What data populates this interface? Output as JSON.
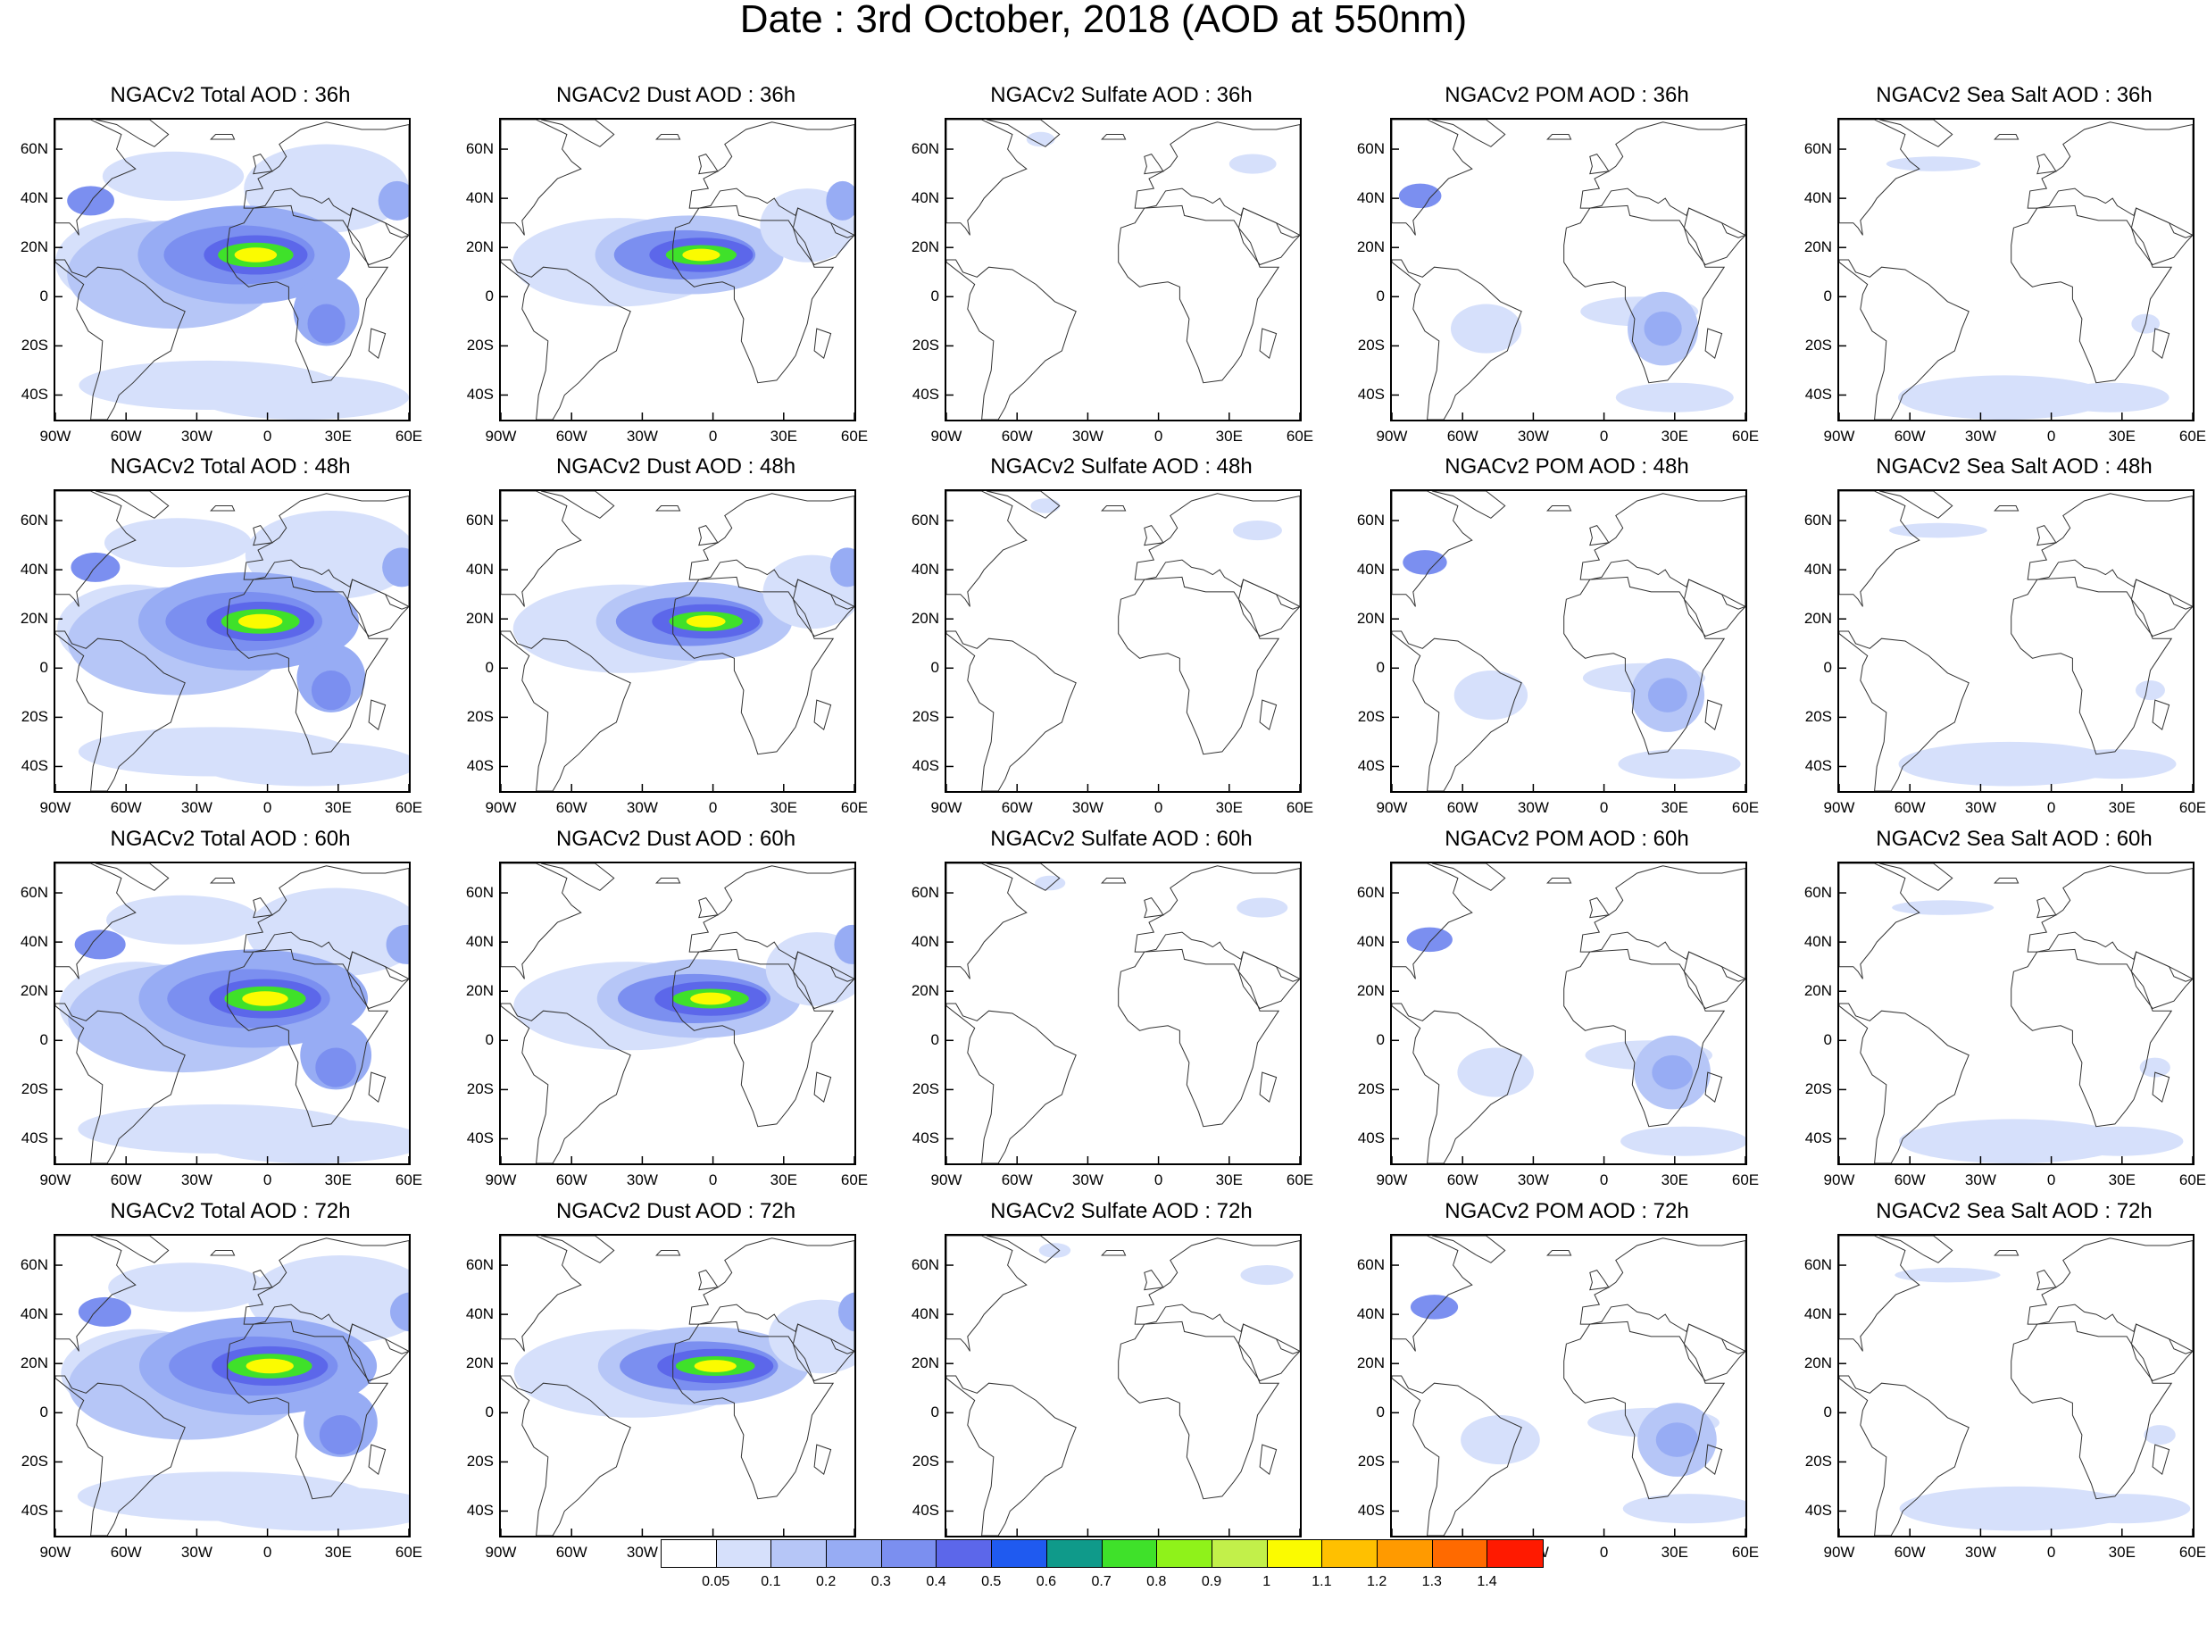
{
  "title": "Date : 3rd October, 2018 (AOD at 550nm)",
  "map_axes": {
    "lon_ticks": [
      "90W",
      "60W",
      "30W",
      "0",
      "30E",
      "60E"
    ],
    "lat_ticks": [
      "60N",
      "40N",
      "20N",
      "0",
      "20S",
      "40S"
    ],
    "lon_values": [
      -90,
      -60,
      -30,
      0,
      30,
      60
    ],
    "lat_values": [
      60,
      40,
      20,
      0,
      -20,
      -40
    ],
    "lon_range": [
      -90,
      60
    ],
    "lat_range": [
      -50,
      72
    ]
  },
  "rows": [
    "36h",
    "48h",
    "60h",
    "72h"
  ],
  "species": [
    "Total",
    "Dust",
    "Sulfate",
    "POM",
    "Sea Salt"
  ],
  "panel_titles": [
    [
      "NGACv2 Total AOD : 36h",
      "NGACv2 Dust AOD : 36h",
      "NGACv2 Sulfate AOD : 36h",
      "NGACv2 POM AOD : 36h",
      "NGACv2 Sea Salt AOD : 36h"
    ],
    [
      "NGACv2 Total AOD : 48h",
      "NGACv2 Dust AOD : 48h",
      "NGACv2 Sulfate AOD : 48h",
      "NGACv2 POM AOD : 48h",
      "NGACv2 Sea Salt AOD : 48h"
    ],
    [
      "NGACv2 Total AOD : 60h",
      "NGACv2 Dust AOD : 60h",
      "NGACv2 Sulfate AOD : 60h",
      "NGACv2 POM AOD : 60h",
      "NGACv2 Sea Salt AOD : 60h"
    ],
    [
      "NGACv2 Total AOD : 72h",
      "NGACv2 Dust AOD : 72h",
      "NGACv2 Sulfate AOD : 72h",
      "NGACv2 POM AOD : 72h",
      "NGACv2 Sea Salt  AOD : 72h"
    ]
  ],
  "colorbar": {
    "colors": [
      "#ffffff",
      "#d6e0fb",
      "#b6c6f7",
      "#97acf4",
      "#7b8ff0",
      "#5c67ea",
      "#1f5af0",
      "#0f9a8a",
      "#3fe12a",
      "#8ff21a",
      "#c2f04a",
      "#fbfb00",
      "#ffc000",
      "#ff9a00",
      "#ff6a00",
      "#ff1a00"
    ],
    "labels": [
      "0.05",
      "0.1",
      "0.2",
      "0.3",
      "0.4",
      "0.5",
      "0.6",
      "0.7",
      "0.8",
      "0.9",
      "1",
      "1.1",
      "1.2",
      "1.3",
      "1.4"
    ]
  },
  "palette": {
    "coast": "#333333",
    "light": "#d6e0fb",
    "med": "#b6c6f7",
    "mid": "#97acf4",
    "strong": "#7b8ff0",
    "deep": "#5c67ea",
    "blue": "#1f5af0",
    "teal": "#0f9a8a",
    "green": "#3fe12a",
    "lime": "#8ff21a",
    "yellow": "#fbfb00"
  }
}
